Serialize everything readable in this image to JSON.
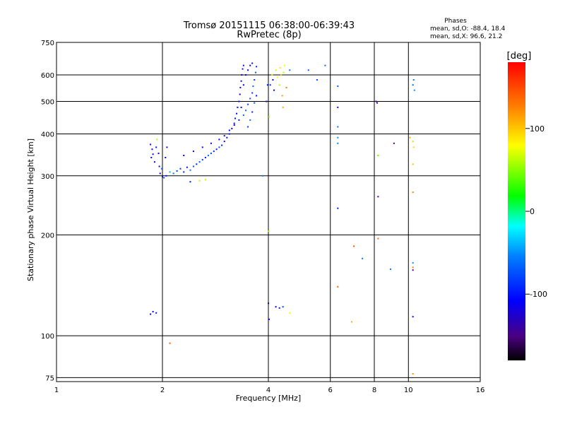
{
  "chart_data": {
    "type": "scatter",
    "title": "Tromsø 20151115 06:38:00-06:39:43",
    "subtitle": "RwPretec (8p)",
    "xlabel": "Frequency [MHz]",
    "ylabel": "Stationary phase Virtual Height [km]",
    "x_scale": "log2",
    "y_scale": "log",
    "xlim": [
      1,
      16
    ],
    "ylim": [
      73,
      750
    ],
    "x_ticks": [
      1,
      2,
      4,
      6,
      8,
      10,
      16
    ],
    "y_ticks": [
      75,
      100,
      200,
      300,
      400,
      500,
      600,
      750
    ],
    "grid": true,
    "stats": {
      "heading": "Phases",
      "line_o": "mean, sd,O: -88.4, 18.4",
      "line_x": "mean, sd,X:  96.6, 21.2"
    },
    "colorbar": {
      "label": "[deg]",
      "range": [
        -180,
        180
      ],
      "ticks": [
        100,
        0,
        -100
      ]
    },
    "points": [
      {
        "x": 1.85,
        "y": 372,
        "p": -110
      },
      {
        "x": 1.87,
        "y": 360,
        "p": -115
      },
      {
        "x": 1.88,
        "y": 348,
        "p": -105
      },
      {
        "x": 1.86,
        "y": 340,
        "p": -120
      },
      {
        "x": 1.9,
        "y": 330,
        "p": -112
      },
      {
        "x": 1.92,
        "y": 365,
        "p": -100
      },
      {
        "x": 1.93,
        "y": 385,
        "p": 60
      },
      {
        "x": 1.95,
        "y": 350,
        "p": -118
      },
      {
        "x": 1.96,
        "y": 320,
        "p": -108
      },
      {
        "x": 1.97,
        "y": 305,
        "p": -115
      },
      {
        "x": 2.0,
        "y": 298,
        "p": -100
      },
      {
        "x": 2.02,
        "y": 296,
        "p": -70
      },
      {
        "x": 2.05,
        "y": 300,
        "p": -110
      },
      {
        "x": 2.04,
        "y": 340,
        "p": -115
      },
      {
        "x": 2.06,
        "y": 365,
        "p": -120
      },
      {
        "x": 1.99,
        "y": 315,
        "p": -60
      },
      {
        "x": 2.1,
        "y": 308,
        "p": -40
      },
      {
        "x": 2.15,
        "y": 305,
        "p": -60
      },
      {
        "x": 2.2,
        "y": 310,
        "p": -80
      },
      {
        "x": 2.25,
        "y": 315,
        "p": -90
      },
      {
        "x": 2.3,
        "y": 308,
        "p": -95
      },
      {
        "x": 2.35,
        "y": 318,
        "p": -100
      },
      {
        "x": 2.4,
        "y": 312,
        "p": -60
      },
      {
        "x": 2.45,
        "y": 320,
        "p": -80
      },
      {
        "x": 2.5,
        "y": 325,
        "p": -95
      },
      {
        "x": 2.55,
        "y": 330,
        "p": -70
      },
      {
        "x": 2.6,
        "y": 335,
        "p": -85
      },
      {
        "x": 2.65,
        "y": 340,
        "p": -100
      },
      {
        "x": 2.7,
        "y": 345,
        "p": -60
      },
      {
        "x": 2.75,
        "y": 350,
        "p": -80
      },
      {
        "x": 2.8,
        "y": 355,
        "p": -90
      },
      {
        "x": 2.85,
        "y": 360,
        "p": -100
      },
      {
        "x": 2.9,
        "y": 365,
        "p": -75
      },
      {
        "x": 2.95,
        "y": 370,
        "p": -95
      },
      {
        "x": 3.0,
        "y": 380,
        "p": -105
      },
      {
        "x": 3.05,
        "y": 390,
        "p": -110
      },
      {
        "x": 3.1,
        "y": 400,
        "p": -100
      },
      {
        "x": 3.15,
        "y": 415,
        "p": -115
      },
      {
        "x": 3.2,
        "y": 430,
        "p": -108
      },
      {
        "x": 3.22,
        "y": 445,
        "p": -112
      },
      {
        "x": 3.25,
        "y": 460,
        "p": -105
      },
      {
        "x": 3.27,
        "y": 480,
        "p": -110
      },
      {
        "x": 3.3,
        "y": 500,
        "p": -100
      },
      {
        "x": 3.32,
        "y": 525,
        "p": -115
      },
      {
        "x": 3.33,
        "y": 550,
        "p": -110
      },
      {
        "x": 3.35,
        "y": 575,
        "p": -108
      },
      {
        "x": 3.36,
        "y": 600,
        "p": -112
      },
      {
        "x": 3.38,
        "y": 625,
        "p": -105
      },
      {
        "x": 3.4,
        "y": 640,
        "p": -110
      },
      {
        "x": 2.3,
        "y": 345,
        "p": -110
      },
      {
        "x": 2.45,
        "y": 355,
        "p": -115
      },
      {
        "x": 2.6,
        "y": 365,
        "p": -105
      },
      {
        "x": 2.75,
        "y": 375,
        "p": -110
      },
      {
        "x": 2.9,
        "y": 385,
        "p": -112
      },
      {
        "x": 3.0,
        "y": 395,
        "p": -108
      },
      {
        "x": 3.1,
        "y": 410,
        "p": -110
      },
      {
        "x": 3.2,
        "y": 425,
        "p": -115
      },
      {
        "x": 3.3,
        "y": 440,
        "p": -100
      },
      {
        "x": 3.4,
        "y": 455,
        "p": -70
      },
      {
        "x": 3.45,
        "y": 470,
        "p": -60
      },
      {
        "x": 3.5,
        "y": 490,
        "p": -80
      },
      {
        "x": 3.55,
        "y": 510,
        "p": -75
      },
      {
        "x": 3.6,
        "y": 530,
        "p": -90
      },
      {
        "x": 3.62,
        "y": 555,
        "p": -65
      },
      {
        "x": 3.65,
        "y": 580,
        "p": -85
      },
      {
        "x": 3.68,
        "y": 610,
        "p": -70
      },
      {
        "x": 3.7,
        "y": 635,
        "p": -95
      },
      {
        "x": 3.5,
        "y": 420,
        "p": -85
      },
      {
        "x": 3.55,
        "y": 440,
        "p": -60
      },
      {
        "x": 3.6,
        "y": 465,
        "p": -95
      },
      {
        "x": 3.65,
        "y": 495,
        "p": -70
      },
      {
        "x": 3.7,
        "y": 520,
        "p": -110
      },
      {
        "x": 3.45,
        "y": 600,
        "p": -108
      },
      {
        "x": 3.5,
        "y": 620,
        "p": -112
      },
      {
        "x": 3.55,
        "y": 640,
        "p": -105
      },
      {
        "x": 3.6,
        "y": 650,
        "p": -110
      },
      {
        "x": 3.4,
        "y": 560,
        "p": -112
      },
      {
        "x": 3.35,
        "y": 480,
        "p": -108
      },
      {
        "x": 2.55,
        "y": 290,
        "p": 60
      },
      {
        "x": 2.65,
        "y": 292,
        "p": 65
      },
      {
        "x": 2.4,
        "y": 288,
        "p": -100
      },
      {
        "x": 3.85,
        "y": 300,
        "p": -60
      },
      {
        "x": 3.95,
        "y": 500,
        "p": -110
      },
      {
        "x": 3.98,
        "y": 560,
        "p": -100
      },
      {
        "x": 4.0,
        "y": 205,
        "p": 55
      },
      {
        "x": 4.02,
        "y": 450,
        "p": 60
      },
      {
        "x": 4.05,
        "y": 560,
        "p": -90
      },
      {
        "x": 4.1,
        "y": 600,
        "p": 70
      },
      {
        "x": 4.12,
        "y": 580,
        "p": -120
      },
      {
        "x": 4.15,
        "y": 540,
        "p": -110
      },
      {
        "x": 4.2,
        "y": 620,
        "p": 65
      },
      {
        "x": 4.25,
        "y": 590,
        "p": 80
      },
      {
        "x": 4.3,
        "y": 560,
        "p": 60
      },
      {
        "x": 4.32,
        "y": 630,
        "p": 90
      },
      {
        "x": 4.35,
        "y": 600,
        "p": 100
      },
      {
        "x": 4.38,
        "y": 520,
        "p": 120
      },
      {
        "x": 4.4,
        "y": 480,
        "p": 110
      },
      {
        "x": 4.42,
        "y": 610,
        "p": 60
      },
      {
        "x": 4.45,
        "y": 640,
        "p": 75
      },
      {
        "x": 4.5,
        "y": 550,
        "p": 130
      },
      {
        "x": 4.6,
        "y": 620,
        "p": -60
      },
      {
        "x": 5.2,
        "y": 620,
        "p": -70
      },
      {
        "x": 5.5,
        "y": 580,
        "p": -80
      },
      {
        "x": 5.8,
        "y": 640,
        "p": -65
      },
      {
        "x": 4.0,
        "y": 125,
        "p": -110
      },
      {
        "x": 4.02,
        "y": 112,
        "p": -120
      },
      {
        "x": 4.2,
        "y": 122,
        "p": -110
      },
      {
        "x": 4.3,
        "y": 121,
        "p": -100
      },
      {
        "x": 4.4,
        "y": 122,
        "p": -80
      },
      {
        "x": 4.6,
        "y": 117,
        "p": 80
      },
      {
        "x": 1.85,
        "y": 116,
        "p": -120
      },
      {
        "x": 1.88,
        "y": 118,
        "p": -110
      },
      {
        "x": 1.92,
        "y": 117,
        "p": -100
      },
      {
        "x": 2.1,
        "y": 95,
        "p": 140
      },
      {
        "x": 6.3,
        "y": 555,
        "p": -70
      },
      {
        "x": 6.3,
        "y": 480,
        "p": -110
      },
      {
        "x": 6.3,
        "y": 420,
        "p": -60
      },
      {
        "x": 6.3,
        "y": 390,
        "p": -50
      },
      {
        "x": 6.3,
        "y": 375,
        "p": -55
      },
      {
        "x": 6.3,
        "y": 240,
        "p": -100
      },
      {
        "x": 6.3,
        "y": 140,
        "p": 140
      },
      {
        "x": 6.9,
        "y": 110,
        "p": 110
      },
      {
        "x": 7.0,
        "y": 185,
        "p": 150
      },
      {
        "x": 7.4,
        "y": 170,
        "p": -60
      },
      {
        "x": 8.1,
        "y": 500,
        "p": -150
      },
      {
        "x": 8.15,
        "y": 495,
        "p": -120
      },
      {
        "x": 8.2,
        "y": 345,
        "p": 40
      },
      {
        "x": 8.2,
        "y": 260,
        "p": -150
      },
      {
        "x": 8.2,
        "y": 195,
        "p": 140
      },
      {
        "x": 8.9,
        "y": 158,
        "p": -60
      },
      {
        "x": 9.1,
        "y": 375,
        "p": -150
      },
      {
        "x": 10.1,
        "y": 390,
        "p": 110
      },
      {
        "x": 10.3,
        "y": 560,
        "p": -70
      },
      {
        "x": 10.35,
        "y": 580,
        "p": -60
      },
      {
        "x": 10.4,
        "y": 540,
        "p": -50
      },
      {
        "x": 10.3,
        "y": 380,
        "p": 100
      },
      {
        "x": 10.35,
        "y": 365,
        "p": 95
      },
      {
        "x": 10.3,
        "y": 325,
        "p": 105
      },
      {
        "x": 10.3,
        "y": 268,
        "p": 130
      },
      {
        "x": 10.3,
        "y": 165,
        "p": -50
      },
      {
        "x": 10.3,
        "y": 160,
        "p": 125
      },
      {
        "x": 10.3,
        "y": 157,
        "p": -150
      },
      {
        "x": 10.3,
        "y": 114,
        "p": -110
      },
      {
        "x": 10.3,
        "y": 77,
        "p": 120
      }
    ]
  }
}
